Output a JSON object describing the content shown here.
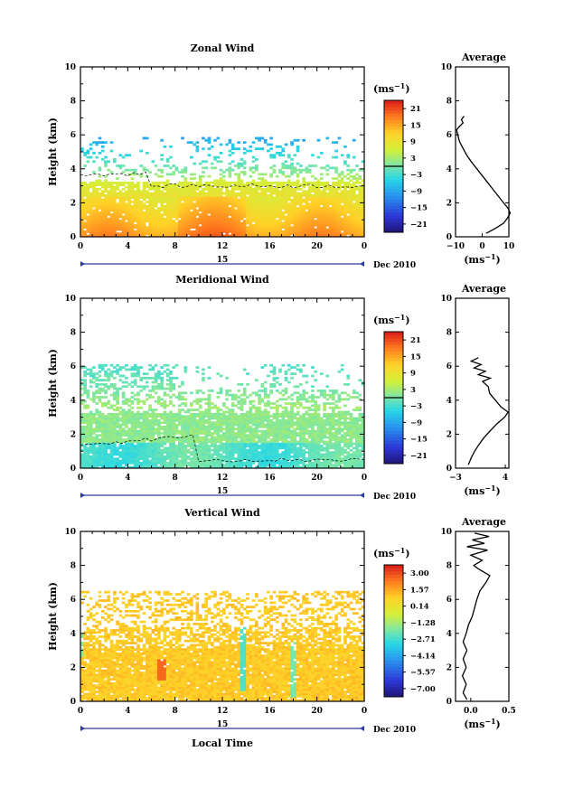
{
  "chart_data": [
    {
      "type": "heatmap",
      "title": "Zonal Wind",
      "ylabel": "Height (km)",
      "xlabel": "",
      "xlim": [
        0,
        24
      ],
      "ylim": [
        0,
        10
      ],
      "x_ticks": [
        "0",
        "4",
        "8",
        "12",
        "16",
        "20",
        "0"
      ],
      "y_ticks": [
        "0",
        "2",
        "4",
        "6",
        "8",
        "10"
      ],
      "day_label": "15",
      "date_label": "Dec 2010",
      "colorbar": {
        "title": "(ms",
        "title_exp": "−1",
        "title_close": ")",
        "labels": [
          "21",
          "15",
          "9",
          "3",
          "−3",
          "−9",
          "−15",
          "−21"
        ],
        "min": -24,
        "max": 24,
        "zero_line": true
      },
      "average": {
        "title": "Average",
        "xlabel": "(ms",
        "xlabel_exp": "−1",
        "xlabel_close": ")",
        "xlim": [
          -10,
          10
        ],
        "x_ticks": [
          "−10",
          "0",
          "10"
        ],
        "y_ticks": [
          "0",
          "2",
          "4",
          "6",
          "8",
          "10"
        ],
        "profile": [
          [
            1.5,
            0.2
          ],
          [
            5,
            0.5
          ],
          [
            8,
            0.8
          ],
          [
            9.5,
            1.1
          ],
          [
            10.5,
            1.4
          ],
          [
            9.6,
            1.7
          ],
          [
            8,
            2.0
          ],
          [
            6,
            2.4
          ],
          [
            4,
            2.8
          ],
          [
            2,
            3.2
          ],
          [
            0,
            3.6
          ],
          [
            -2,
            4.0
          ],
          [
            -4,
            4.4
          ],
          [
            -5.8,
            4.8
          ],
          [
            -7.2,
            5.2
          ],
          [
            -8.5,
            5.6
          ],
          [
            -9.2,
            6.0
          ],
          [
            -9.6,
            6.3
          ],
          [
            -8.5,
            6.5
          ],
          [
            -7.2,
            6.7
          ],
          [
            -7.8,
            6.9
          ],
          [
            -6.8,
            7.1
          ]
        ]
      }
    },
    {
      "type": "heatmap",
      "title": "Meridional Wind",
      "ylabel": "Height (km)",
      "xlabel": "",
      "xlim": [
        0,
        24
      ],
      "ylim": [
        0,
        10
      ],
      "x_ticks": [
        "0",
        "4",
        "8",
        "12",
        "16",
        "20",
        "0"
      ],
      "y_ticks": [
        "0",
        "2",
        "4",
        "6",
        "8",
        "10"
      ],
      "day_label": "15",
      "date_label": "Dec 2010",
      "colorbar": {
        "title": "(ms",
        "title_exp": "−1",
        "title_close": ")",
        "labels": [
          "21",
          "15",
          "9",
          "3",
          "−3",
          "−9",
          "−15",
          "−21"
        ],
        "min": -24,
        "max": 24,
        "zero_line": true
      },
      "average": {
        "title": "Average",
        "xlabel": "(ms",
        "xlabel_exp": "−1",
        "xlabel_close": ")",
        "xlim": [
          -3,
          4.5
        ],
        "x_ticks": [
          "−3",
          "4"
        ],
        "y_ticks": [
          "0",
          "2",
          "4",
          "6",
          "8",
          "10"
        ],
        "profile": [
          [
            -1.2,
            0.2
          ],
          [
            -0.8,
            0.6
          ],
          [
            -0.3,
            1.0
          ],
          [
            0.3,
            1.4
          ],
          [
            1.0,
            1.8
          ],
          [
            1.9,
            2.2
          ],
          [
            2.8,
            2.6
          ],
          [
            3.9,
            3.0
          ],
          [
            4.4,
            3.3
          ],
          [
            3.4,
            3.6
          ],
          [
            2.6,
            4.0
          ],
          [
            1.8,
            4.4
          ],
          [
            1.6,
            4.8
          ],
          [
            0.8,
            5.1
          ],
          [
            1.9,
            5.3
          ],
          [
            0.2,
            5.5
          ],
          [
            1.2,
            5.7
          ],
          [
            -0.4,
            5.9
          ],
          [
            0.6,
            6.1
          ],
          [
            -0.8,
            6.3
          ],
          [
            0.2,
            6.5
          ]
        ]
      }
    },
    {
      "type": "heatmap",
      "title": "Vertical Wind",
      "ylabel": "Height (km)",
      "xlabel": "Local Time",
      "xlim": [
        0,
        24
      ],
      "ylim": [
        0,
        10
      ],
      "x_ticks": [
        "0",
        "4",
        "8",
        "12",
        "16",
        "20",
        "0"
      ],
      "y_ticks": [
        "0",
        "2",
        "4",
        "6",
        "8",
        "10"
      ],
      "day_label": "15",
      "date_label": "Dec 2010",
      "colorbar": {
        "title": "(ms",
        "title_exp": "−1",
        "title_close": ")",
        "labels": [
          "3.00",
          "1.57",
          "0.14",
          "−1.28",
          "−2.71",
          "−4.14",
          "−5.57",
          "−7.00"
        ],
        "min": -7.0,
        "max": 3.0,
        "zero_line": false
      },
      "average": {
        "title": "Average",
        "xlabel": "(ms",
        "xlabel_exp": "−1",
        "xlabel_close": ")",
        "xlim": [
          -0.2,
          0.5
        ],
        "x_ticks": [
          "0.0",
          "0.5"
        ],
        "y_ticks": [
          "0",
          "2",
          "4",
          "6",
          "8",
          "10"
        ],
        "profile": [
          [
            -0.05,
            0.1
          ],
          [
            -0.1,
            0.5
          ],
          [
            -0.06,
            1.0
          ],
          [
            -0.11,
            1.5
          ],
          [
            -0.06,
            2.0
          ],
          [
            -0.1,
            2.5
          ],
          [
            -0.05,
            3.0
          ],
          [
            -0.1,
            3.5
          ],
          [
            -0.06,
            4.0
          ],
          [
            -0.03,
            4.5
          ],
          [
            0.02,
            5.0
          ],
          [
            0.05,
            5.5
          ],
          [
            0.08,
            6.0
          ],
          [
            0.12,
            6.5
          ],
          [
            0.2,
            7.0
          ],
          [
            0.25,
            7.4
          ],
          [
            0.1,
            7.8
          ],
          [
            0.04,
            8.0
          ],
          [
            0.15,
            8.3
          ],
          [
            0.0,
            8.6
          ],
          [
            0.22,
            8.9
          ],
          [
            -0.05,
            9.1
          ],
          [
            0.18,
            9.3
          ],
          [
            0.02,
            9.5
          ],
          [
            0.24,
            9.7
          ],
          [
            0.05,
            9.9
          ]
        ]
      }
    }
  ]
}
